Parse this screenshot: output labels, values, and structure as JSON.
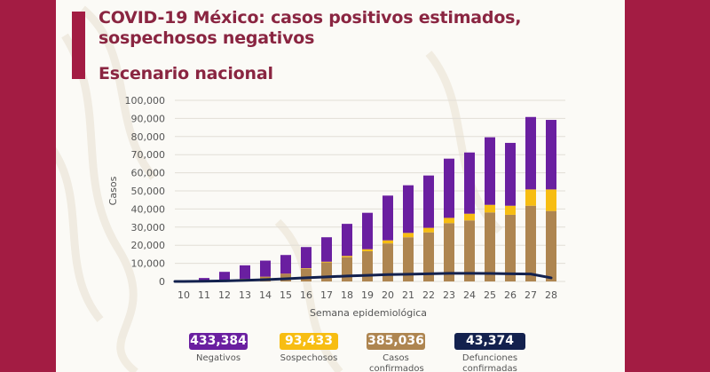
{
  "slide": {
    "title": "COVID-19 México: casos positivos estimados, sospechosos negativos",
    "subtitle": "Escenario nacional"
  },
  "colors": {
    "brand_maroon": "#A31C43",
    "negativos": "#6a1fa0",
    "sospechosos": "#f7bd12",
    "confirmados": "#ae8550",
    "defunciones": "#13214e"
  },
  "chart_data": {
    "type": "bar",
    "stacked": true,
    "title": "Escenario nacional",
    "xlabel": "Semana epidemiológica",
    "ylabel": "Casos",
    "ylim": [
      0,
      100000
    ],
    "yticks": [
      0,
      10000,
      20000,
      30000,
      40000,
      50000,
      60000,
      70000,
      80000,
      90000,
      100000
    ],
    "ytick_labels": [
      "0",
      "10,000",
      "20,000",
      "30,000",
      "40,000",
      "50,000",
      "60,000",
      "70,000",
      "80,000",
      "90,000",
      "100,000"
    ],
    "grid": true,
    "categories": [
      "10",
      "11",
      "12",
      "13",
      "14",
      "15",
      "16",
      "17",
      "18",
      "19",
      "20",
      "21",
      "22",
      "23",
      "24",
      "25",
      "26",
      "27",
      "28"
    ],
    "series": [
      {
        "name": "Casos confirmados",
        "type": "bar",
        "color": "#ae8550",
        "values": [
          100,
          200,
          400,
          1500,
          2500,
          4000,
          7000,
          10500,
          13400,
          16700,
          21000,
          24400,
          27100,
          32200,
          33700,
          38100,
          36800,
          41800,
          38900
        ]
      },
      {
        "name": "Sospechosos",
        "type": "bar",
        "color": "#f7bd12",
        "values": [
          0,
          0,
          0,
          0,
          100,
          200,
          300,
          400,
          700,
          1100,
          1700,
          2400,
          2500,
          2900,
          3700,
          4200,
          5000,
          9000,
          11900
        ]
      },
      {
        "name": "Negativos",
        "type": "bar",
        "color": "#6a1fa0",
        "values": [
          400,
          1700,
          4900,
          7400,
          8900,
          10400,
          11700,
          13500,
          17700,
          20100,
          24700,
          26300,
          28900,
          32700,
          33800,
          37300,
          34700,
          40000,
          38400
        ]
      },
      {
        "name": "Defunciones confirmadas",
        "type": "line",
        "color": "#13214e",
        "values": [
          0,
          100,
          300,
          600,
          1000,
          1500,
          2000,
          2500,
          3000,
          3400,
          3800,
          4000,
          4200,
          4500,
          4500,
          4400,
          4200,
          4100,
          2000
        ]
      }
    ],
    "legend": {
      "placement": "bottom",
      "items": [
        {
          "value": "433,384",
          "label": "Negativos",
          "color": "#6a1fa0"
        },
        {
          "value": "93,433",
          "label": "Sospechosos",
          "color": "#f7bd12"
        },
        {
          "value": "385,036",
          "label": "Casos confirmados",
          "color": "#ae8550"
        },
        {
          "value": "43,374",
          "label": "Defunciones confirmadas",
          "color": "#13214e"
        }
      ]
    }
  }
}
